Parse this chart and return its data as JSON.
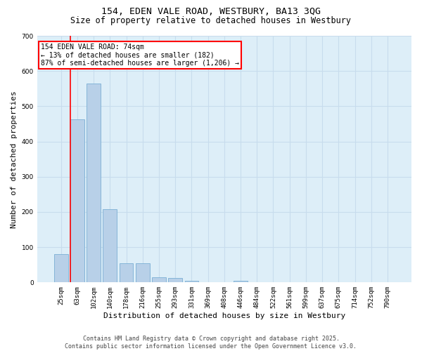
{
  "title_line1": "154, EDEN VALE ROAD, WESTBURY, BA13 3QG",
  "title_line2": "Size of property relative to detached houses in Westbury",
  "xlabel": "Distribution of detached houses by size in Westbury",
  "ylabel": "Number of detached properties",
  "categories": [
    "25sqm",
    "63sqm",
    "102sqm",
    "140sqm",
    "178sqm",
    "216sqm",
    "255sqm",
    "293sqm",
    "331sqm",
    "369sqm",
    "408sqm",
    "446sqm",
    "484sqm",
    "522sqm",
    "561sqm",
    "599sqm",
    "637sqm",
    "675sqm",
    "714sqm",
    "752sqm",
    "790sqm"
  ],
  "values": [
    80,
    462,
    565,
    208,
    55,
    55,
    15,
    12,
    4,
    0,
    0,
    4,
    0,
    0,
    0,
    0,
    0,
    0,
    0,
    0,
    0
  ],
  "bar_color": "#b8d0e8",
  "bar_edge_color": "#7aafd4",
  "annotation_text": "154 EDEN VALE ROAD: 74sqm\n← 13% of detached houses are smaller (182)\n87% of semi-detached houses are larger (1,206) →",
  "annotation_box_color": "white",
  "annotation_box_edge_color": "red",
  "vline_color": "red",
  "vline_x": 0.575,
  "ylim": [
    0,
    700
  ],
  "yticks": [
    0,
    100,
    200,
    300,
    400,
    500,
    600,
    700
  ],
  "grid_color": "#c8dced",
  "background_color": "#ddeef8",
  "footer_line1": "Contains HM Land Registry data © Crown copyright and database right 2025.",
  "footer_line2": "Contains public sector information licensed under the Open Government Licence v3.0.",
  "title_fontsize": 9.5,
  "subtitle_fontsize": 8.5,
  "tick_fontsize": 6.5,
  "ylabel_fontsize": 8,
  "xlabel_fontsize": 8,
  "footer_fontsize": 6,
  "annotation_fontsize": 7
}
